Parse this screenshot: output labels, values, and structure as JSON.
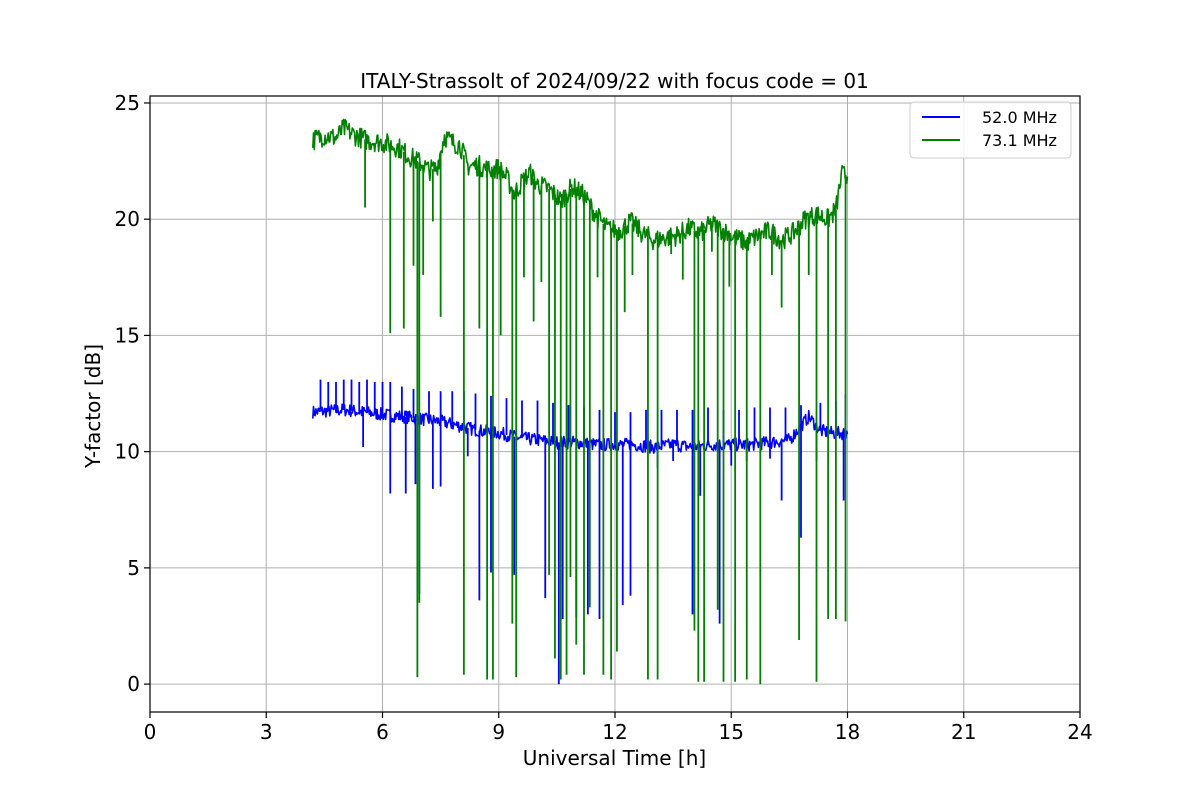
{
  "chart_data": {
    "type": "line",
    "title": "ITALY-Strassolt of 2024/09/22 with focus code = 01",
    "xlabel": "Universal Time [h]",
    "ylabel": "Y-factor [dB]",
    "xlim": [
      0,
      24
    ],
    "ylim": [
      -1.2,
      25.3
    ],
    "xticks": [
      0,
      3,
      6,
      9,
      12,
      15,
      18,
      21,
      24
    ],
    "yticks": [
      0,
      5,
      10,
      15,
      20,
      25
    ],
    "grid": true,
    "legend_position": "top-right",
    "series": [
      {
        "name": "52.0 MHz",
        "color": "#0000ff",
        "baseline": [
          [
            4.2,
            11.7
          ],
          [
            5.0,
            11.8
          ],
          [
            5.5,
            11.7
          ],
          [
            6.0,
            11.6
          ],
          [
            6.6,
            11.5
          ],
          [
            7.0,
            11.4
          ],
          [
            7.5,
            11.3
          ],
          [
            8.0,
            11.1
          ],
          [
            8.5,
            10.9
          ],
          [
            9.0,
            10.8
          ],
          [
            9.5,
            10.6
          ],
          [
            10.0,
            10.5
          ],
          [
            10.5,
            10.4
          ],
          [
            11.0,
            10.4
          ],
          [
            11.5,
            10.3
          ],
          [
            12.0,
            10.3
          ],
          [
            12.5,
            10.3
          ],
          [
            13.0,
            10.2
          ],
          [
            13.5,
            10.3
          ],
          [
            14.0,
            10.2
          ],
          [
            14.5,
            10.3
          ],
          [
            15.0,
            10.3
          ],
          [
            15.5,
            10.3
          ],
          [
            16.0,
            10.4
          ],
          [
            16.5,
            10.5
          ],
          [
            17.0,
            11.5
          ],
          [
            17.3,
            10.9
          ],
          [
            17.6,
            10.8
          ],
          [
            18.0,
            10.8
          ]
        ],
        "spikes_up": [
          [
            4.4,
            13.1
          ],
          [
            4.6,
            13.0
          ],
          [
            4.8,
            13.0
          ],
          [
            5.0,
            13.1
          ],
          [
            5.2,
            13.1
          ],
          [
            5.4,
            13.0
          ],
          [
            5.6,
            13.1
          ],
          [
            5.8,
            13.0
          ],
          [
            6.0,
            13.0
          ],
          [
            6.2,
            13.0
          ],
          [
            6.5,
            12.8
          ],
          [
            6.8,
            12.7
          ],
          [
            7.2,
            12.6
          ],
          [
            7.5,
            12.6
          ],
          [
            7.8,
            12.6
          ],
          [
            8.1,
            12.6
          ],
          [
            8.4,
            12.5
          ],
          [
            8.8,
            12.4
          ],
          [
            9.2,
            12.3
          ],
          [
            9.6,
            12.2
          ],
          [
            10.0,
            12.2
          ],
          [
            10.4,
            12.1
          ],
          [
            10.8,
            12.0
          ],
          [
            11.2,
            11.9
          ],
          [
            11.6,
            11.8
          ],
          [
            12.0,
            11.7
          ],
          [
            12.4,
            11.7
          ],
          [
            12.8,
            11.8
          ],
          [
            13.2,
            11.8
          ],
          [
            13.6,
            11.8
          ],
          [
            14.0,
            11.8
          ],
          [
            14.4,
            11.9
          ],
          [
            14.8,
            11.8
          ],
          [
            15.2,
            11.8
          ],
          [
            15.6,
            11.9
          ],
          [
            16.0,
            11.9
          ],
          [
            16.4,
            11.9
          ],
          [
            16.8,
            12.0
          ],
          [
            17.3,
            12.1
          ],
          [
            17.7,
            12.2
          ],
          [
            17.95,
            12.5
          ]
        ],
        "spikes_down": [
          [
            5.5,
            10.2
          ],
          [
            6.2,
            8.2
          ],
          [
            6.6,
            8.2
          ],
          [
            6.85,
            8.6
          ],
          [
            6.95,
            3.9
          ],
          [
            7.3,
            8.4
          ],
          [
            7.5,
            8.5
          ],
          [
            8.2,
            9.8
          ],
          [
            8.5,
            3.6
          ],
          [
            8.8,
            4.8
          ],
          [
            9.4,
            4.7
          ],
          [
            10.2,
            3.7
          ],
          [
            10.55,
            0.0
          ],
          [
            10.65,
            2.8
          ],
          [
            11.0,
            2.9
          ],
          [
            11.3,
            3.0
          ],
          [
            11.6,
            2.8
          ],
          [
            12.2,
            3.4
          ],
          [
            12.4,
            3.8
          ],
          [
            13.1,
            9.3
          ],
          [
            13.5,
            9.6
          ],
          [
            14.0,
            3.0
          ],
          [
            14.2,
            8.1
          ],
          [
            14.7,
            2.6
          ],
          [
            15.0,
            9.4
          ],
          [
            15.4,
            9.6
          ],
          [
            16.0,
            9.7
          ],
          [
            16.3,
            7.9
          ],
          [
            16.8,
            6.3
          ],
          [
            17.2,
            9.6
          ],
          [
            17.9,
            7.9
          ]
        ]
      },
      {
        "name": "73.1 MHz",
        "color": "#008000",
        "baseline": [
          [
            4.2,
            23.4
          ],
          [
            4.5,
            23.6
          ],
          [
            4.8,
            23.5
          ],
          [
            5.0,
            23.9
          ],
          [
            5.3,
            23.6
          ],
          [
            5.6,
            23.4
          ],
          [
            6.0,
            23.3
          ],
          [
            6.4,
            23.1
          ],
          [
            6.7,
            22.7
          ],
          [
            7.0,
            22.4
          ],
          [
            7.2,
            22.1
          ],
          [
            7.4,
            22.2
          ],
          [
            7.6,
            23.6
          ],
          [
            7.8,
            23.3
          ],
          [
            8.0,
            23.2
          ],
          [
            8.2,
            22.3
          ],
          [
            8.5,
            22.3
          ],
          [
            8.8,
            22.1
          ],
          [
            9.0,
            22.2
          ],
          [
            9.2,
            21.8
          ],
          [
            9.4,
            21.1
          ],
          [
            9.6,
            21.6
          ],
          [
            9.8,
            22.0
          ],
          [
            10.0,
            21.5
          ],
          [
            10.3,
            21.3
          ],
          [
            10.6,
            20.8
          ],
          [
            10.9,
            21.4
          ],
          [
            11.2,
            21.0
          ],
          [
            11.5,
            20.2
          ],
          [
            11.8,
            19.6
          ],
          [
            12.1,
            19.5
          ],
          [
            12.4,
            19.9
          ],
          [
            12.7,
            19.4
          ],
          [
            13.0,
            19.1
          ],
          [
            13.3,
            19.2
          ],
          [
            13.6,
            19.3
          ],
          [
            13.9,
            19.6
          ],
          [
            14.2,
            19.4
          ],
          [
            14.5,
            19.8
          ],
          [
            14.8,
            19.5
          ],
          [
            15.1,
            19.2
          ],
          [
            15.4,
            19.0
          ],
          [
            15.7,
            19.3
          ],
          [
            16.0,
            19.5
          ],
          [
            16.3,
            19.1
          ],
          [
            16.6,
            19.4
          ],
          [
            16.9,
            20.0
          ],
          [
            17.2,
            20.2
          ],
          [
            17.5,
            20.0
          ],
          [
            17.7,
            20.4
          ],
          [
            17.85,
            21.9
          ],
          [
            18.0,
            21.9
          ]
        ],
        "spikes_down": [
          [
            5.55,
            20.5
          ],
          [
            6.2,
            15.1
          ],
          [
            6.55,
            15.3
          ],
          [
            6.8,
            18.0
          ],
          [
            6.9,
            0.3
          ],
          [
            6.95,
            3.5
          ],
          [
            7.05,
            17.6
          ],
          [
            7.3,
            19.9
          ],
          [
            7.5,
            15.8
          ],
          [
            8.1,
            0.4
          ],
          [
            8.5,
            15.3
          ],
          [
            8.7,
            0.2
          ],
          [
            8.85,
            0.2
          ],
          [
            9.05,
            15.0
          ],
          [
            9.35,
            2.6
          ],
          [
            9.45,
            0.3
          ],
          [
            9.65,
            17.5
          ],
          [
            9.9,
            15.6
          ],
          [
            10.1,
            17.3
          ],
          [
            10.3,
            4.7
          ],
          [
            10.45,
            1.1
          ],
          [
            10.6,
            0.2
          ],
          [
            10.75,
            0.4
          ],
          [
            10.85,
            4.6
          ],
          [
            11.0,
            1.7
          ],
          [
            11.2,
            0.4
          ],
          [
            11.35,
            3.3
          ],
          [
            11.55,
            17.5
          ],
          [
            11.7,
            0.4
          ],
          [
            11.9,
            0.2
          ],
          [
            12.05,
            1.4
          ],
          [
            12.25,
            16.0
          ],
          [
            12.45,
            17.6
          ],
          [
            12.85,
            0.2
          ],
          [
            13.1,
            0.2
          ],
          [
            13.45,
            18.5
          ],
          [
            13.75,
            17.4
          ],
          [
            14.05,
            2.3
          ],
          [
            14.15,
            0.1
          ],
          [
            14.3,
            0.1
          ],
          [
            14.5,
            18.6
          ],
          [
            14.65,
            3.2
          ],
          [
            14.8,
            0.1
          ],
          [
            14.95,
            17.1
          ],
          [
            15.1,
            0.1
          ],
          [
            15.4,
            0.2
          ],
          [
            15.75,
            0.0
          ],
          [
            16.05,
            17.6
          ],
          [
            16.3,
            16.2
          ],
          [
            16.75,
            1.9
          ],
          [
            17.0,
            17.6
          ],
          [
            17.2,
            0.1
          ],
          [
            17.5,
            2.8
          ],
          [
            17.7,
            2.8
          ],
          [
            17.95,
            2.7
          ]
        ]
      }
    ]
  }
}
